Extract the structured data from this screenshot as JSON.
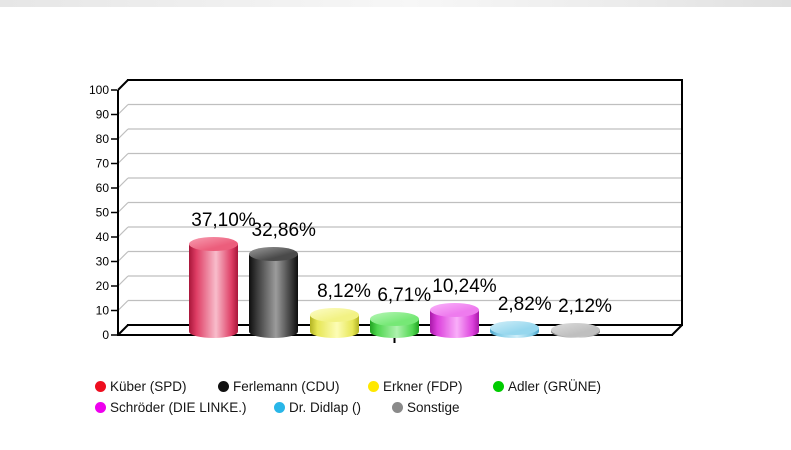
{
  "chart_data": {
    "type": "bar",
    "subtype": "3d-cylinder",
    "title": "",
    "xlabel": "",
    "ylabel": "",
    "ylim": [
      0,
      100
    ],
    "ytick_step": 10,
    "ytick_labels": [
      "0",
      "10",
      "20",
      "30",
      "40",
      "50",
      "60",
      "70",
      "80",
      "90",
      "100"
    ],
    "grid": true,
    "legend_position": "bottom",
    "categories": [
      "Küber (SPD)",
      "Ferlemann (CDU)",
      "Erkner (FDP)",
      "Adler (GRÜNE)",
      "Schröder (DIE LINKE.)",
      "Dr. Didlap ()",
      "Sonstige"
    ],
    "slugs": [
      "kueber-spd",
      "ferlemann-cdu",
      "erkner-fdp",
      "adler-gruene",
      "schroeder-die-linke",
      "dr-didlap",
      "sonstige"
    ],
    "values": [
      37.1,
      32.86,
      8.12,
      6.71,
      10.24,
      2.82,
      2.12
    ],
    "value_labels": [
      "37,10%",
      "32,86%",
      "8,12%",
      "6,71%",
      "10,24%",
      "2,82%",
      "2,12%"
    ],
    "colors": [
      {
        "legend": "#ee0e1f",
        "edge": "#a8163a",
        "main": "#de3d64",
        "light": "#f8bccb",
        "top": "#ec5e7c",
        "top_light": "#f58fa5"
      },
      {
        "legend": "#101010",
        "edge": "#0d0d0d",
        "main": "#383838",
        "light": "#9c9c9c",
        "top": "#4a4a4a",
        "top_light": "#8a8a8a"
      },
      {
        "legend": "#ffe800",
        "edge": "#b3b322",
        "main": "#e6e655",
        "light": "#fdfdb5",
        "top": "#f2f284",
        "top_light": "#fafab8"
      },
      {
        "legend": "#00cc00",
        "edge": "#22a322",
        "main": "#4fd64f",
        "light": "#aef2ae",
        "top": "#76e876",
        "top_light": "#a8f3a8"
      },
      {
        "legend": "#ee00ee",
        "edge": "#a819a8",
        "main": "#dc40dc",
        "light": "#f9aef9",
        "top": "#ee7bee",
        "top_light": "#f7a6f7"
      },
      {
        "legend": "#29b6e8",
        "edge": "#4fa3c8",
        "main": "#7fcbe6",
        "light": "#cfeef9",
        "top": "#96d7ee",
        "top_light": "#c3e9f6"
      },
      {
        "legend": "#8a8a8a",
        "edge": "#737373",
        "main": "#a6a6a6",
        "light": "#e0e0e0",
        "top": "#bfbfbf",
        "top_light": "#d6d6d6"
      }
    ],
    "frame_color": "#000000",
    "gridline_color": "#bfbfbf",
    "legend_rows": [
      [
        0,
        1,
        2,
        3
      ],
      [
        4,
        5,
        6
      ]
    ]
  }
}
